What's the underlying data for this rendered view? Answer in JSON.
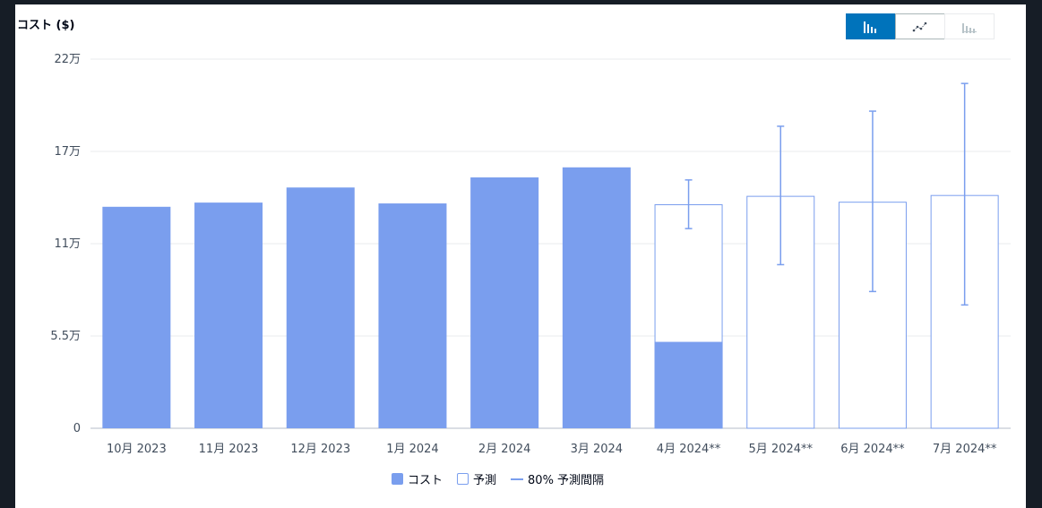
{
  "header": {
    "ylabel": "コスト ($)"
  },
  "toggle": [
    {
      "name": "bar-chart-icon",
      "active": true
    },
    {
      "name": "line-chart-icon",
      "active": false
    },
    {
      "name": "stacked-bar-chart-icon",
      "active": false,
      "disabled": true
    }
  ],
  "colors": {
    "bar": "#7a9eee",
    "grid": "#e9ebed",
    "axis": "#b6bec9"
  },
  "chart_data": {
    "type": "bar",
    "categories": [
      "10月 2023",
      "11月 2023",
      "12月 2023",
      "1月 2024",
      "2月 2024",
      "3月 2024",
      "4月 2024**",
      "5月 2024**",
      "6月 2024**",
      "7月 2024**"
    ],
    "ylim": [
      0,
      220000
    ],
    "yticks": [
      0,
      55000,
      110000,
      165000,
      220000
    ],
    "ytick_labels": [
      "0",
      "5.5万",
      "11万",
      "17万",
      "22万"
    ],
    "series": [
      {
        "name": "コスト",
        "values": [
          132000,
          134500,
          143500,
          134000,
          149500,
          155500,
          51500,
          null,
          null,
          null
        ]
      },
      {
        "name": "予測",
        "values": [
          null,
          null,
          null,
          null,
          null,
          null,
          133500,
          138500,
          135000,
          139000
        ]
      },
      {
        "name": "80% 予測間隔",
        "low": [
          null,
          null,
          null,
          null,
          null,
          null,
          119000,
          97500,
          81500,
          73500
        ],
        "high": [
          null,
          null,
          null,
          null,
          null,
          null,
          148000,
          180000,
          189000,
          205500
        ]
      }
    ],
    "legend": [
      "コスト",
      "予測",
      "80% 予測間隔"
    ],
    "legend_position": "bottom",
    "grid": true
  }
}
